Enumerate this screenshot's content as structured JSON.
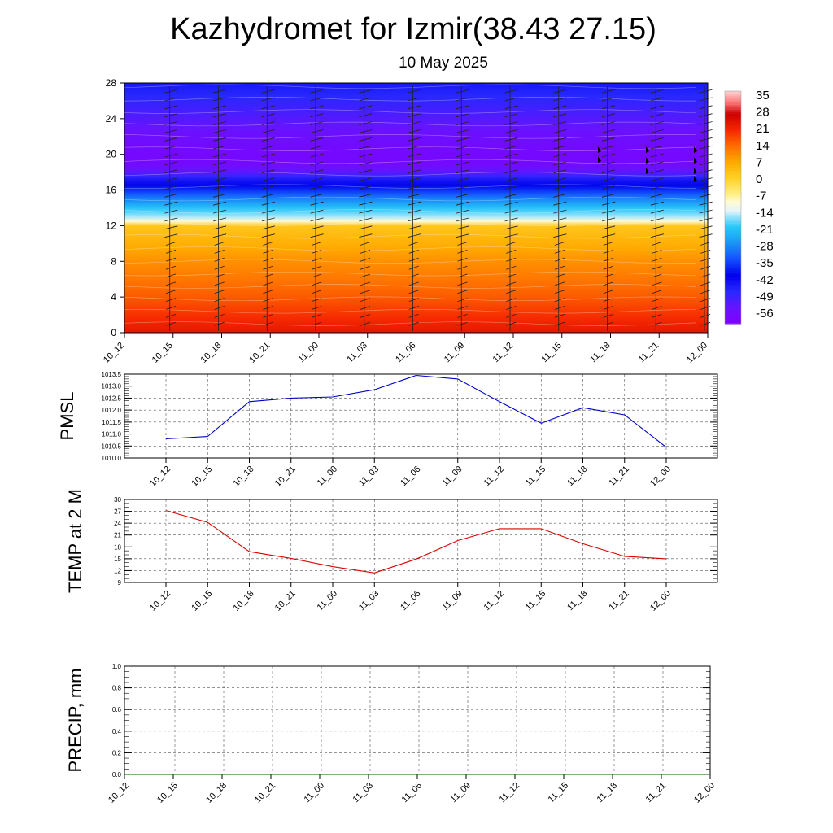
{
  "header": {
    "title": "Kazhydromet for Izmir(38.43 27.15)",
    "date": "10 May 2025"
  },
  "time_labels": [
    "10_12",
    "10_15",
    "10_18",
    "10_21",
    "11_00",
    "11_03",
    "11_06",
    "11_09",
    "11_12",
    "11_15",
    "11_18",
    "11_21",
    "12_00"
  ],
  "chart_data": [
    {
      "type": "heatmap",
      "title": "",
      "ylim": [
        0,
        28
      ],
      "y_ticks": [
        "0",
        "4",
        "8",
        "12",
        "16",
        "20",
        "24",
        "28"
      ],
      "x_ticks": [
        "10_12",
        "10_15",
        "10_18",
        "10_21",
        "11_00",
        "11_03",
        "11_06",
        "11_09",
        "11_12",
        "11_15",
        "11_18",
        "11_21",
        "12_00"
      ],
      "colorbar": {
        "labels": [
          "35",
          "28",
          "21",
          "14",
          "7",
          "0",
          "-7",
          "-14",
          "-21",
          "-28",
          "-35",
          "-42",
          "-49",
          "-56"
        ],
        "min": -63,
        "max": 38
      },
      "temperature_profile": {
        "y": [
          0,
          2,
          4,
          6,
          8,
          10,
          12,
          12.5,
          13,
          14,
          15,
          16,
          17,
          18,
          19,
          20,
          22,
          24,
          26,
          28
        ],
        "values": [
          24,
          20,
          16,
          13,
          10,
          6,
          2,
          -10,
          -16,
          -22,
          -30,
          -38,
          -45,
          -55,
          -60,
          -60,
          -58,
          -54,
          -50,
          -46
        ]
      },
      "grid": false
    },
    {
      "type": "line",
      "ylabel": "PMSL",
      "ylim": [
        1010.0,
        1013.5
      ],
      "y_ticks": [
        "1010.0",
        "1010.5",
        "1011.0",
        "1011.5",
        "1012.0",
        "1012.5",
        "1013.0",
        "1013.5"
      ],
      "categories": [
        "10_12",
        "10_15",
        "10_18",
        "10_21",
        "11_00",
        "11_03",
        "11_06",
        "11_09",
        "11_12",
        "11_15",
        "11_18",
        "11_21",
        "12_00"
      ],
      "series": [
        {
          "values": [
            1010.8,
            1010.9,
            1012.35,
            1012.5,
            1012.55,
            1012.85,
            1013.45,
            1013.3,
            1012.35,
            1011.45,
            1012.1,
            1011.8,
            1010.45
          ],
          "color": "#0000cc"
        }
      ],
      "grid": true
    },
    {
      "type": "line",
      "ylabel": "TEMP at 2 M",
      "ylim": [
        9,
        30
      ],
      "y_ticks": [
        "9",
        "12",
        "15",
        "18",
        "21",
        "24",
        "27",
        "30"
      ],
      "categories": [
        "10_12",
        "10_15",
        "10_18",
        "10_21",
        "11_00",
        "11_03",
        "11_06",
        "11_09",
        "11_12",
        "11_15",
        "11_18",
        "11_21",
        "12_00"
      ],
      "series": [
        {
          "values": [
            27.2,
            24.2,
            16.8,
            15.1,
            13.0,
            11.4,
            14.9,
            19.6,
            22.6,
            22.6,
            18.8,
            15.6,
            15.0
          ],
          "color": "#dd0000"
        }
      ],
      "grid": true
    },
    {
      "type": "line",
      "ylabel": "PRECIP, mm",
      "ylim": [
        0.0,
        1.0
      ],
      "y_ticks": [
        "0.0",
        "0.2",
        "0.4",
        "0.6",
        "0.8",
        "1.0"
      ],
      "categories": [
        "10_12",
        "10_15",
        "10_18",
        "10_21",
        "11_00",
        "11_03",
        "11_06",
        "11_09",
        "11_12",
        "11_15",
        "11_18",
        "11_21",
        "12_00"
      ],
      "series": [
        {
          "values": [
            0,
            0,
            0,
            0,
            0,
            0,
            0,
            0,
            0,
            0,
            0,
            0,
            0
          ],
          "color": "#006400"
        }
      ],
      "grid": true
    }
  ]
}
